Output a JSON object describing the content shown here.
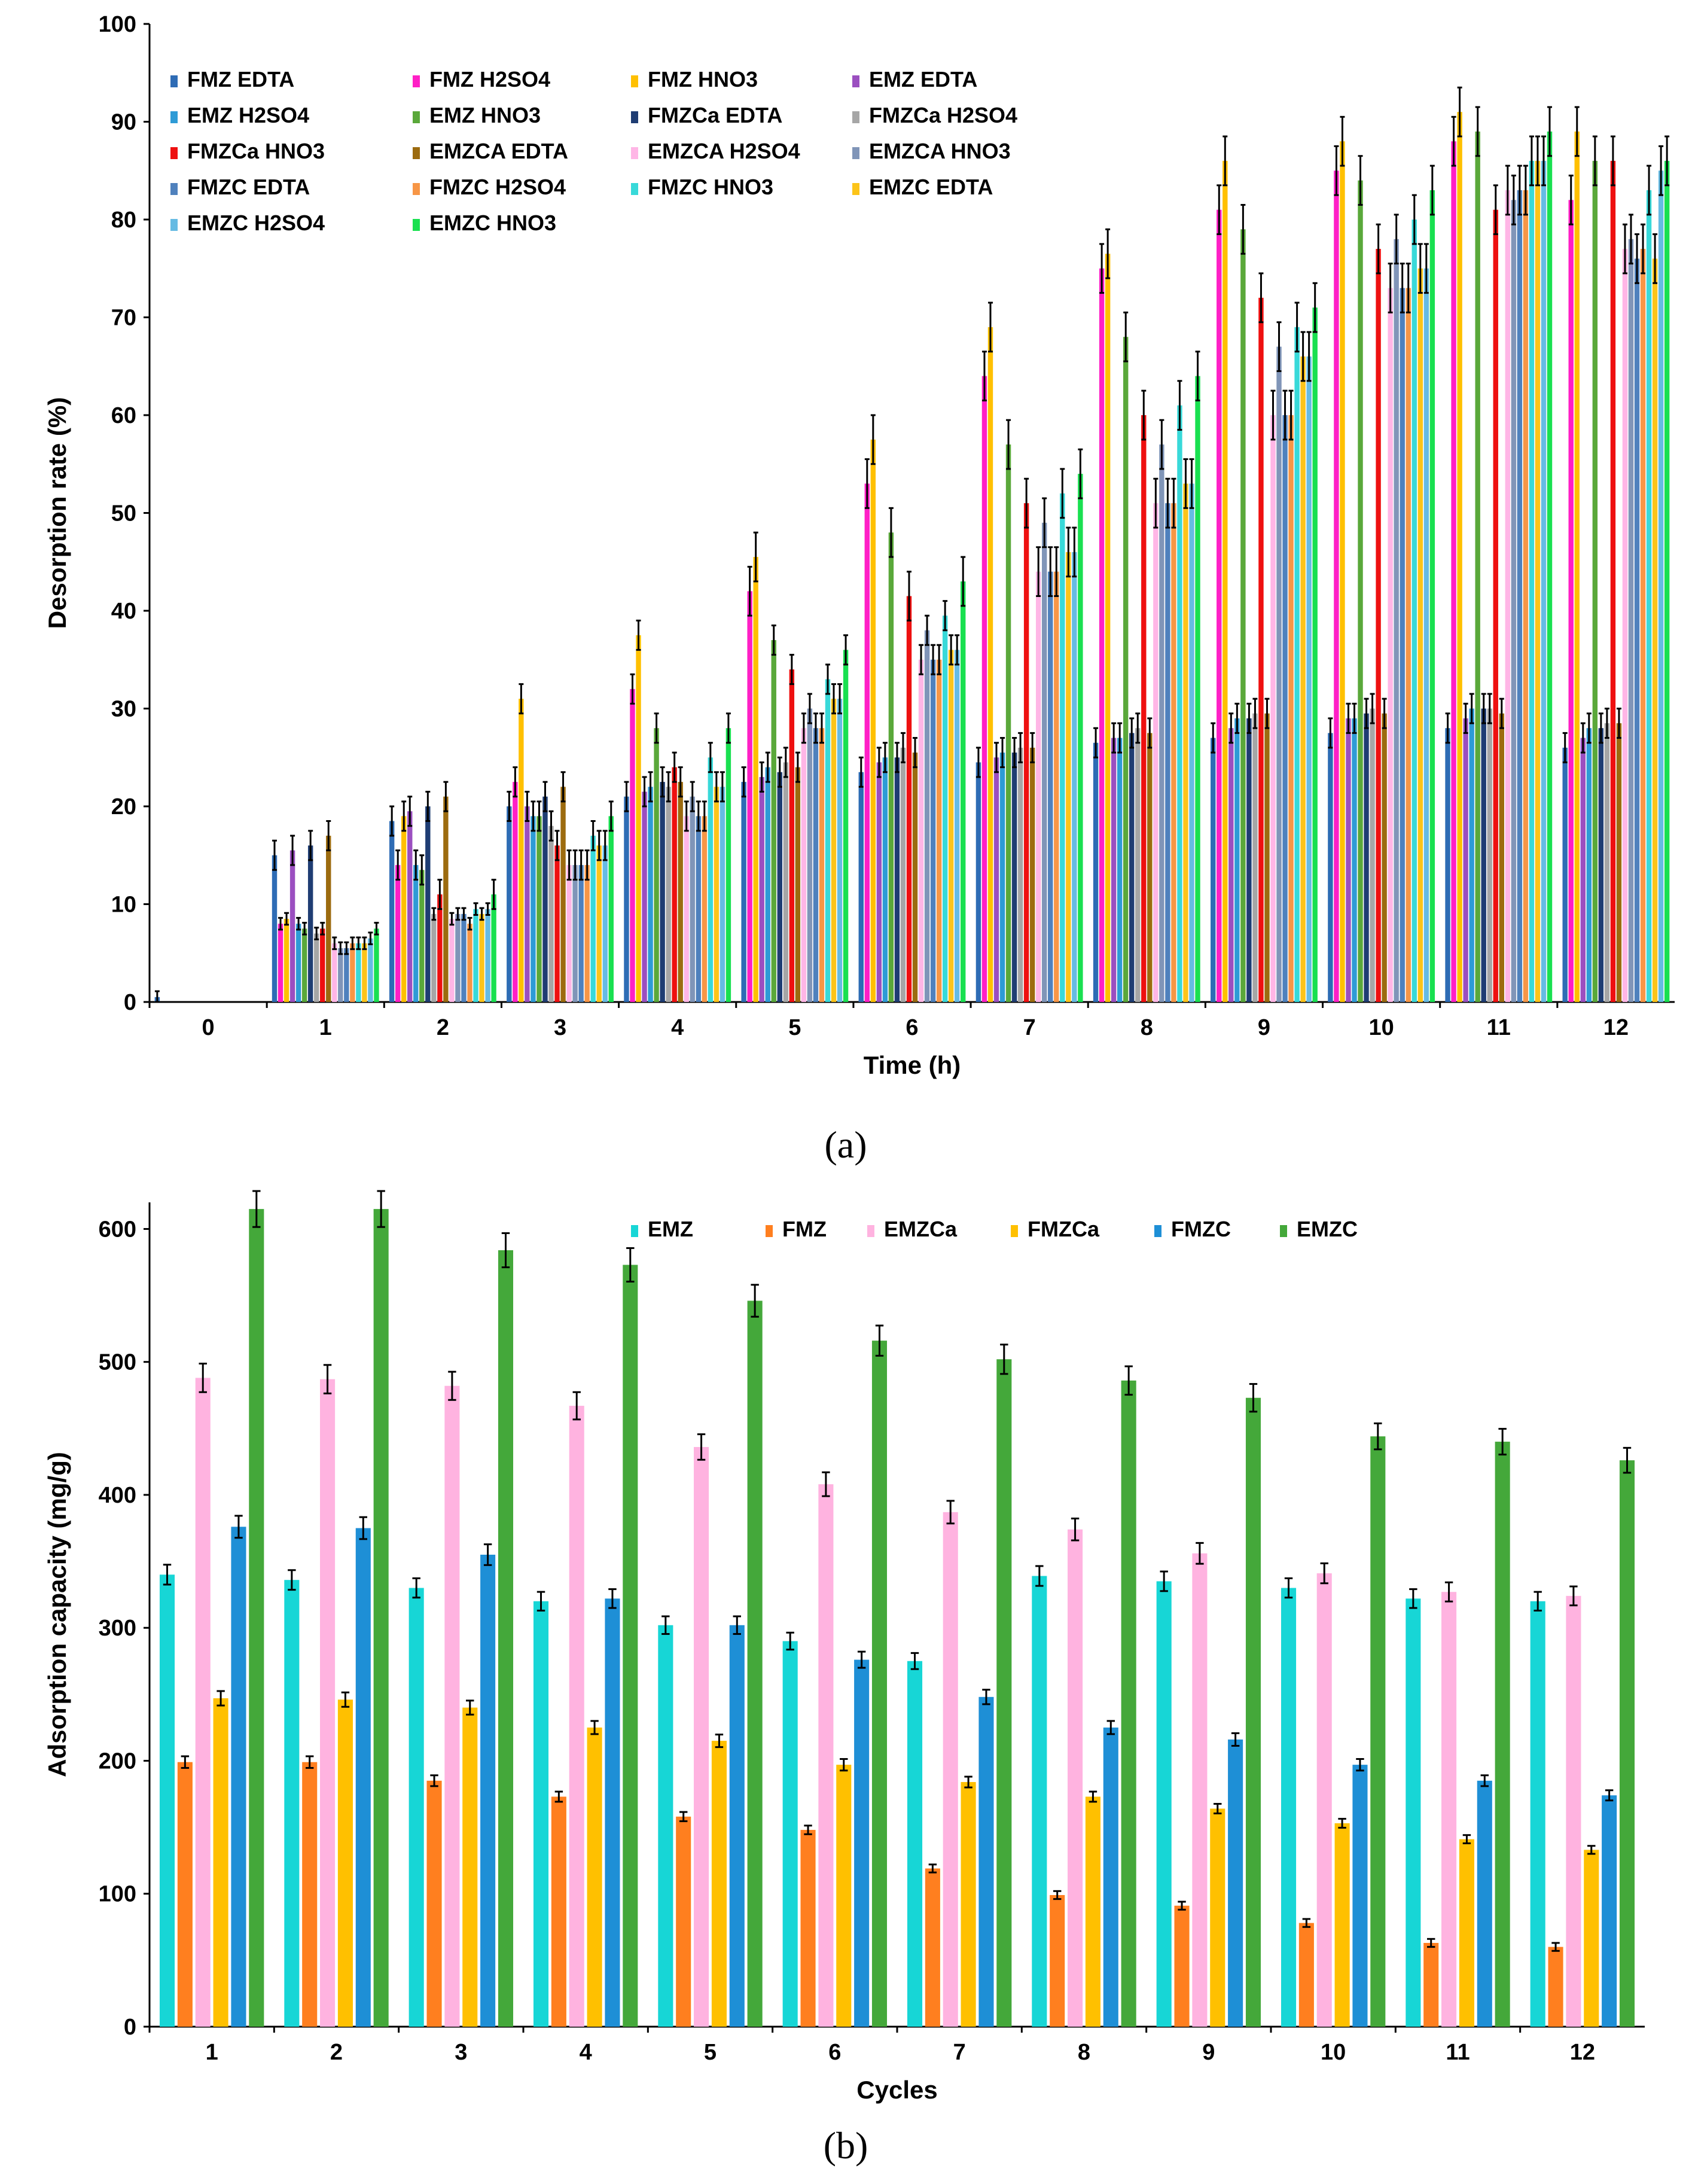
{
  "panel_labels": [
    "(a)",
    "(b)"
  ],
  "colors": {
    "FMZ EDTA": "#2e6cb5",
    "FMZ H2SO4": "#ff1fc6",
    "FMZ HNO3": "#ffc000",
    "EMZ EDTA": "#9b4fc0",
    "EMZ H2SO4": "#2e9bd6",
    "EMZ HNO3": "#5aa83a",
    "FMZCa EDTA": "#1f3d73",
    "FMZCa H2SO4": "#a6a6a6",
    "FMZCa HNO3": "#ee1010",
    "EMZCA EDTA": "#9c6b0f",
    "EMZCA H2SO4": "#ffb6e6",
    "EMZCA HNO3": "#8095b8",
    "FMZC EDTA": "#4f81bd",
    "FMZC H2SO4": "#f79646",
    "FMZC HNO3": "#38d9d9",
    "EMZC EDTA": "#fcc419",
    "EMZC H2SO4": "#66bbe3",
    "EMZC HNO3": "#19e050",
    "EMZ": "#17d6d6",
    "FMZ": "#ff7f1f",
    "EMZCa": "#ffb3e0",
    "FMZCa": "#ffc000",
    "FMZC": "#1e8fd6",
    "EMZC": "#44a83a"
  },
  "chart_data": [
    {
      "type": "bar",
      "title": "",
      "xlabel": "Time (h)",
      "ylabel": "Desorption rate (%)",
      "ylim": [
        0,
        100
      ],
      "yticks": [
        0,
        10,
        20,
        30,
        40,
        50,
        60,
        70,
        80,
        90,
        100
      ],
      "categories": [
        "0",
        "1",
        "2",
        "3",
        "4",
        "5",
        "6",
        "7",
        "8",
        "9",
        "10",
        "11",
        "12"
      ],
      "legend_position": "top-left",
      "series": [
        {
          "name": "FMZ EDTA",
          "values": [
            0.5,
            15,
            18.5,
            20,
            21,
            22.5,
            23.5,
            24.5,
            26.5,
            27,
            27.5,
            28,
            26
          ]
        },
        {
          "name": "FMZ H2SO4",
          "values": [
            0,
            8,
            14,
            22.5,
            32,
            42,
            53,
            64,
            75,
            81,
            85,
            88,
            82
          ]
        },
        {
          "name": "FMZ HNO3",
          "values": [
            0,
            8.5,
            19,
            31,
            37.5,
            45.5,
            57.5,
            69,
            76.5,
            86,
            88,
            91,
            89
          ]
        },
        {
          "name": "EMZ EDTA",
          "values": [
            0,
            15.5,
            19.5,
            20,
            21.5,
            23,
            24.5,
            25,
            27,
            28,
            29,
            29,
            27
          ]
        },
        {
          "name": "EMZ H2SO4",
          "values": [
            0,
            8,
            14,
            19,
            22,
            24,
            25,
            25.5,
            27,
            29,
            29,
            30,
            28
          ]
        },
        {
          "name": "EMZ HNO3",
          "values": [
            0,
            7.5,
            13.5,
            19,
            28,
            37,
            48,
            57,
            68,
            79,
            84,
            89,
            86
          ]
        },
        {
          "name": "FMZCa EDTA",
          "values": [
            0,
            16,
            20,
            21,
            22.5,
            23.5,
            25,
            25.5,
            27.5,
            29,
            29.5,
            30,
            28
          ]
        },
        {
          "name": "FMZCa H2SO4",
          "values": [
            0,
            7,
            9,
            18,
            22,
            24.5,
            26,
            26,
            28,
            29.5,
            30,
            30,
            28.5
          ]
        },
        {
          "name": "FMZCa HNO3",
          "values": [
            0,
            7.5,
            11,
            16,
            24,
            34,
            41.5,
            51,
            60,
            72,
            77,
            81,
            86
          ]
        },
        {
          "name": "EMZCA EDTA",
          "values": [
            0,
            17,
            21,
            22,
            22.5,
            24,
            25.5,
            26,
            27.5,
            29.5,
            29.5,
            29.5,
            28.5
          ]
        },
        {
          "name": "EMZCA H2SO4",
          "values": [
            0,
            6,
            8.5,
            14,
            19,
            28,
            35,
            44,
            51,
            60,
            73,
            83,
            77
          ]
        },
        {
          "name": "EMZCA HNO3",
          "values": [
            0,
            5.5,
            9,
            14,
            21,
            30,
            38,
            49,
            57,
            67,
            78,
            82,
            78
          ]
        },
        {
          "name": "FMZC EDTA",
          "values": [
            0,
            5.5,
            9,
            14,
            19,
            28,
            35,
            44,
            51,
            60,
            73,
            83,
            76
          ]
        },
        {
          "name": "FMZC H2SO4",
          "values": [
            0,
            6,
            8,
            14,
            19,
            28,
            35,
            44,
            51,
            60,
            73,
            83,
            77
          ]
        },
        {
          "name": "FMZC HNO3",
          "values": [
            0,
            6,
            9.5,
            17,
            25,
            33,
            39.5,
            52,
            61,
            69,
            80,
            86,
            83
          ]
        },
        {
          "name": "EMZC EDTA",
          "values": [
            0,
            6,
            9,
            16,
            22,
            31,
            36,
            46,
            53,
            66,
            75,
            86,
            76
          ]
        },
        {
          "name": "EMZC H2SO4",
          "values": [
            0,
            6.5,
            9.5,
            16,
            22,
            31,
            36,
            46,
            53,
            66,
            75,
            86,
            85
          ]
        },
        {
          "name": "EMZC HNO3",
          "values": [
            0,
            7.5,
            11,
            19,
            28,
            36,
            43,
            54,
            64,
            71,
            83,
            89,
            86
          ]
        }
      ]
    },
    {
      "type": "bar",
      "title": "",
      "xlabel": "Cycles",
      "ylabel": "Adsorption capacity (mg/g)",
      "ylim": [
        0,
        620
      ],
      "yticks": [
        0,
        100,
        200,
        300,
        400,
        500,
        600
      ],
      "categories": [
        "1",
        "2",
        "3",
        "4",
        "5",
        "6",
        "7",
        "8",
        "9",
        "10",
        "11",
        "12"
      ],
      "legend_position": "top-center",
      "series": [
        {
          "name": "EMZ",
          "values": [
            340,
            336,
            330,
            320,
            302,
            290,
            275,
            339,
            335,
            330,
            322,
            320
          ]
        },
        {
          "name": "FMZ",
          "values": [
            199,
            199,
            185,
            173,
            158,
            148,
            119,
            99,
            91,
            78,
            63,
            60
          ]
        },
        {
          "name": "EMZCa",
          "values": [
            488,
            487,
            482,
            467,
            436,
            408,
            387,
            374,
            356,
            341,
            327,
            324
          ]
        },
        {
          "name": "FMZCa",
          "values": [
            247,
            246,
            240,
            225,
            215,
            197,
            184,
            173,
            164,
            153,
            141,
            133
          ]
        },
        {
          "name": "FMZC",
          "values": [
            376,
            375,
            355,
            322,
            302,
            276,
            248,
            225,
            216,
            197,
            185,
            174
          ]
        },
        {
          "name": "EMZC",
          "values": [
            615,
            615,
            584,
            573,
            546,
            516,
            502,
            486,
            473,
            444,
            440,
            426
          ]
        }
      ]
    }
  ]
}
